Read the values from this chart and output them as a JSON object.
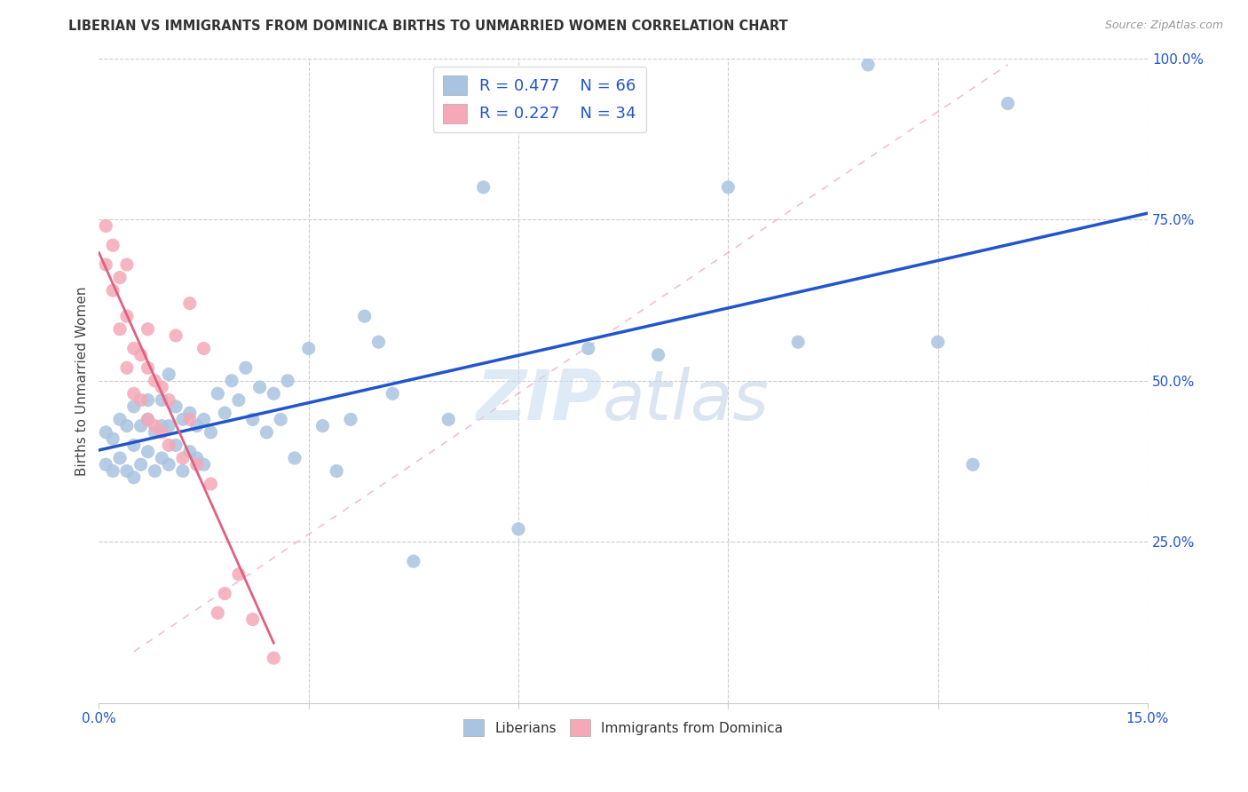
{
  "title": "LIBERIAN VS IMMIGRANTS FROM DOMINICA BIRTHS TO UNMARRIED WOMEN CORRELATION CHART",
  "source": "Source: ZipAtlas.com",
  "ylabel": "Births to Unmarried Women",
  "x_min": 0.0,
  "x_max": 0.15,
  "y_min": 0.0,
  "y_max": 1.0,
  "x_ticks": [
    0.0,
    0.03,
    0.06,
    0.09,
    0.12,
    0.15
  ],
  "x_tick_labels": [
    "0.0%",
    "",
    "",
    "",
    "",
    "15.0%"
  ],
  "y_tick_labels_right": [
    "25.0%",
    "50.0%",
    "75.0%",
    "100.0%"
  ],
  "y_ticks_right": [
    0.25,
    0.5,
    0.75,
    1.0
  ],
  "color_liberian": "#a8c4e0",
  "color_dominica": "#f4a8b8",
  "color_liberian_line": "#2255cc",
  "color_dominica_line": "#e06080",
  "color_ref_dash": "#f0b0c0",
  "watermark_zip": "ZIP",
  "watermark_atlas": "atlas",
  "liberian_x": [
    0.001,
    0.001,
    0.002,
    0.002,
    0.003,
    0.003,
    0.004,
    0.004,
    0.005,
    0.005,
    0.005,
    0.006,
    0.006,
    0.007,
    0.007,
    0.007,
    0.008,
    0.008,
    0.009,
    0.009,
    0.009,
    0.01,
    0.01,
    0.01,
    0.011,
    0.011,
    0.012,
    0.012,
    0.013,
    0.013,
    0.014,
    0.014,
    0.015,
    0.015,
    0.016,
    0.017,
    0.018,
    0.019,
    0.02,
    0.021,
    0.022,
    0.023,
    0.024,
    0.025,
    0.026,
    0.027,
    0.028,
    0.03,
    0.032,
    0.034,
    0.036,
    0.038,
    0.04,
    0.042,
    0.045,
    0.05,
    0.055,
    0.06,
    0.07,
    0.08,
    0.09,
    0.1,
    0.11,
    0.12,
    0.125,
    0.13
  ],
  "liberian_y": [
    0.37,
    0.42,
    0.36,
    0.41,
    0.38,
    0.44,
    0.36,
    0.43,
    0.35,
    0.4,
    0.46,
    0.37,
    0.43,
    0.39,
    0.44,
    0.47,
    0.36,
    0.42,
    0.38,
    0.43,
    0.47,
    0.37,
    0.43,
    0.51,
    0.4,
    0.46,
    0.36,
    0.44,
    0.39,
    0.45,
    0.38,
    0.43,
    0.37,
    0.44,
    0.42,
    0.48,
    0.45,
    0.5,
    0.47,
    0.52,
    0.44,
    0.49,
    0.42,
    0.48,
    0.44,
    0.5,
    0.38,
    0.55,
    0.43,
    0.36,
    0.44,
    0.6,
    0.56,
    0.48,
    0.22,
    0.44,
    0.8,
    0.27,
    0.55,
    0.54,
    0.8,
    0.56,
    0.99,
    0.56,
    0.37,
    0.93
  ],
  "dominica_x": [
    0.001,
    0.001,
    0.002,
    0.002,
    0.003,
    0.003,
    0.004,
    0.004,
    0.004,
    0.005,
    0.005,
    0.006,
    0.006,
    0.007,
    0.007,
    0.007,
    0.008,
    0.008,
    0.009,
    0.009,
    0.01,
    0.01,
    0.011,
    0.012,
    0.013,
    0.013,
    0.014,
    0.015,
    0.016,
    0.017,
    0.018,
    0.02,
    0.022,
    0.025
  ],
  "dominica_y": [
    0.68,
    0.74,
    0.64,
    0.71,
    0.58,
    0.66,
    0.52,
    0.6,
    0.68,
    0.48,
    0.55,
    0.47,
    0.54,
    0.44,
    0.52,
    0.58,
    0.43,
    0.5,
    0.42,
    0.49,
    0.4,
    0.47,
    0.57,
    0.38,
    0.62,
    0.44,
    0.37,
    0.55,
    0.34,
    0.14,
    0.17,
    0.2,
    0.13,
    0.07
  ]
}
